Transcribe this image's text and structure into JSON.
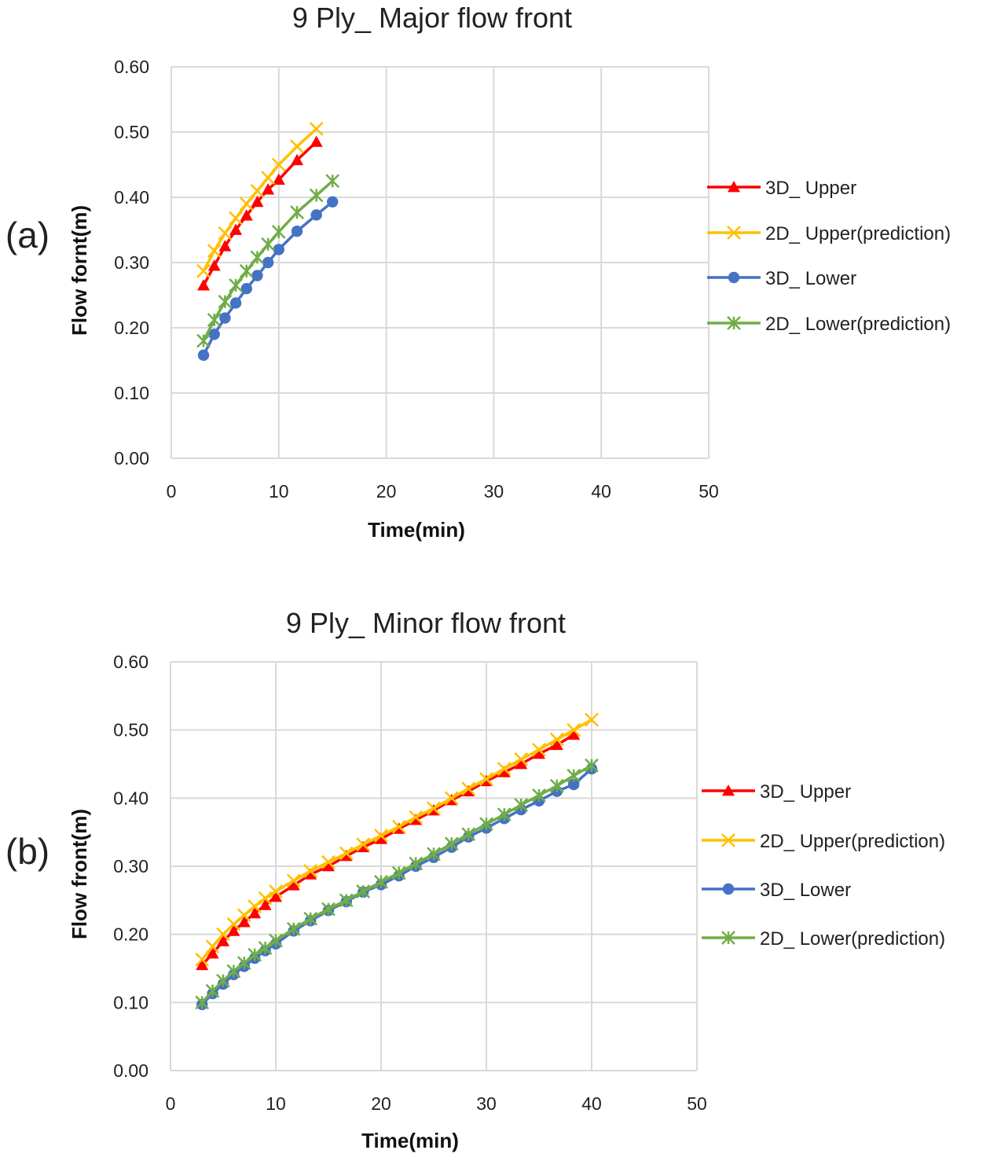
{
  "chart_data": [
    {
      "type": "line",
      "panel_label": "(a)",
      "title": "9 Ply_ Major flow front",
      "xlabel": "Time(min)",
      "ylabel": "Flow fornt(m)",
      "xlim": [
        0,
        50
      ],
      "ylim": [
        0,
        0.6
      ],
      "xticks": [
        "0",
        "10",
        "20",
        "30",
        "40",
        "50"
      ],
      "yticks": [
        "0.00",
        "0.10",
        "0.20",
        "0.30",
        "0.40",
        "0.50",
        "0.60"
      ],
      "grid": true,
      "legend_position": "right",
      "series": [
        {
          "name": "3D_ Upper",
          "color": "#ff0000",
          "marker": "triangle",
          "x": [
            3,
            4,
            5,
            6,
            7,
            8,
            9,
            10,
            11.7,
            13.5
          ],
          "y": [
            0.265,
            0.295,
            0.325,
            0.35,
            0.372,
            0.393,
            0.412,
            0.427,
            0.457,
            0.485
          ]
        },
        {
          "name": "2D_ Upper(prediction)",
          "color": "#ffc000",
          "marker": "x",
          "x": [
            3,
            4,
            5,
            6,
            7,
            8,
            9,
            10,
            11.7,
            13.5
          ],
          "y": [
            0.287,
            0.318,
            0.345,
            0.368,
            0.39,
            0.41,
            0.43,
            0.45,
            0.478,
            0.505
          ]
        },
        {
          "name": "3D_ Lower",
          "color": "#4472c4",
          "marker": "circle",
          "x": [
            3,
            4,
            5,
            6,
            7,
            8,
            9,
            10,
            11.7,
            13.5,
            15
          ],
          "y": [
            0.158,
            0.19,
            0.215,
            0.238,
            0.26,
            0.28,
            0.3,
            0.32,
            0.348,
            0.373,
            0.393
          ]
        },
        {
          "name": "2D_ Lower(prediction)",
          "color": "#70ad47",
          "marker": "star",
          "x": [
            3,
            4,
            5,
            6,
            7,
            8,
            9,
            10,
            11.7,
            13.5,
            15
          ],
          "y": [
            0.18,
            0.212,
            0.24,
            0.265,
            0.287,
            0.308,
            0.328,
            0.347,
            0.377,
            0.403,
            0.425
          ]
        }
      ]
    },
    {
      "type": "line",
      "panel_label": "(b)",
      "title": "9 Ply_ Minor flow front",
      "xlabel": "Time(min)",
      "ylabel": "Flow front(m)",
      "xlim": [
        0,
        50
      ],
      "ylim": [
        0,
        0.6
      ],
      "xticks": [
        "0",
        "10",
        "20",
        "30",
        "40",
        "50"
      ],
      "yticks": [
        "0.00",
        "0.10",
        "0.20",
        "0.30",
        "0.40",
        "0.50",
        "0.60"
      ],
      "grid": true,
      "legend_position": "right",
      "series": [
        {
          "name": "3D_ Upper",
          "color": "#ff0000",
          "marker": "triangle",
          "x": [
            3,
            4,
            5,
            6,
            7,
            8,
            9,
            10,
            11.7,
            13.3,
            15,
            16.7,
            18.3,
            20,
            21.7,
            23.3,
            25,
            26.7,
            28.3,
            30,
            31.7,
            33.3,
            35,
            36.7,
            38.3
          ],
          "y": [
            0.155,
            0.172,
            0.19,
            0.205,
            0.218,
            0.231,
            0.243,
            0.255,
            0.272,
            0.288,
            0.3,
            0.315,
            0.328,
            0.34,
            0.355,
            0.368,
            0.382,
            0.397,
            0.41,
            0.425,
            0.438,
            0.45,
            0.465,
            0.478,
            0.493
          ]
        },
        {
          "name": "2D_ Upper(prediction)",
          "color": "#ffc000",
          "marker": "x",
          "x": [
            3,
            4,
            5,
            6,
            7,
            8,
            9,
            10,
            11.7,
            13.3,
            15,
            16.7,
            18.3,
            20,
            21.7,
            23.3,
            25,
            26.7,
            28.3,
            30,
            31.7,
            33.3,
            35,
            36.7,
            38.3,
            40
          ],
          "y": [
            0.163,
            0.182,
            0.2,
            0.215,
            0.228,
            0.241,
            0.253,
            0.263,
            0.279,
            0.293,
            0.306,
            0.319,
            0.332,
            0.345,
            0.358,
            0.372,
            0.385,
            0.4,
            0.414,
            0.428,
            0.443,
            0.457,
            0.471,
            0.486,
            0.5,
            0.515
          ]
        },
        {
          "name": "3D_ Lower",
          "color": "#4472c4",
          "marker": "circle",
          "x": [
            3,
            4,
            5,
            6,
            7,
            8,
            9,
            10,
            11.7,
            13.3,
            15,
            16.7,
            18.3,
            20,
            21.7,
            23.3,
            25,
            26.7,
            28.3,
            30,
            31.7,
            33.3,
            35,
            36.7,
            38.3,
            40
          ],
          "y": [
            0.097,
            0.113,
            0.127,
            0.141,
            0.153,
            0.165,
            0.176,
            0.186,
            0.205,
            0.22,
            0.235,
            0.248,
            0.262,
            0.273,
            0.286,
            0.3,
            0.313,
            0.328,
            0.343,
            0.356,
            0.37,
            0.383,
            0.396,
            0.41,
            0.42,
            0.443
          ]
        },
        {
          "name": "2D_ Lower(prediction)",
          "color": "#70ad47",
          "marker": "star",
          "x": [
            3,
            4,
            5,
            6,
            7,
            8,
            9,
            10,
            11.7,
            13.3,
            15,
            16.7,
            18.3,
            20,
            21.7,
            23.3,
            25,
            26.7,
            28.3,
            30,
            31.7,
            33.3,
            35,
            36.7,
            38.3,
            40
          ],
          "y": [
            0.1,
            0.117,
            0.132,
            0.146,
            0.158,
            0.17,
            0.18,
            0.191,
            0.208,
            0.223,
            0.237,
            0.25,
            0.263,
            0.277,
            0.29,
            0.304,
            0.318,
            0.333,
            0.347,
            0.362,
            0.376,
            0.39,
            0.404,
            0.418,
            0.433,
            0.448
          ]
        }
      ]
    }
  ]
}
